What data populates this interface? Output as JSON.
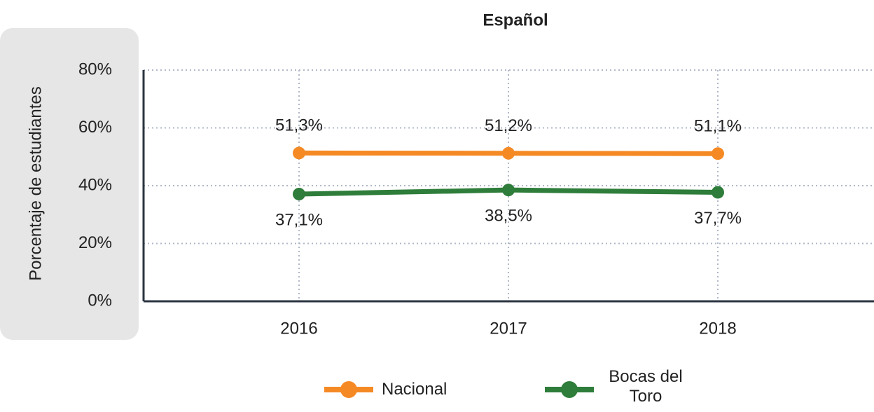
{
  "chart_data": {
    "type": "line",
    "title": "Español",
    "y_label": "Porcentaje de estudiantes",
    "categories": [
      "2016",
      "2017",
      "2018"
    ],
    "series": [
      {
        "name": "Nacional",
        "color": "#f58a25",
        "values": [
          51.3,
          51.2,
          51.1
        ],
        "value_labels": [
          "51,3%",
          "51,2%",
          "51,1%"
        ]
      },
      {
        "name": "Bocas del Toro",
        "color": "#2e7d3a",
        "values": [
          37.1,
          38.5,
          37.7
        ],
        "value_labels": [
          "37,1%",
          "38,5%",
          "37,7%"
        ]
      }
    ],
    "ylim": [
      0,
      80
    ],
    "yticks": [
      {
        "value": 0,
        "label": "0%"
      },
      {
        "value": 20,
        "label": "20%"
      },
      {
        "value": 40,
        "label": "40%"
      },
      {
        "value": 60,
        "label": "60%"
      },
      {
        "value": 80,
        "label": "80%"
      }
    ],
    "grid": true
  }
}
